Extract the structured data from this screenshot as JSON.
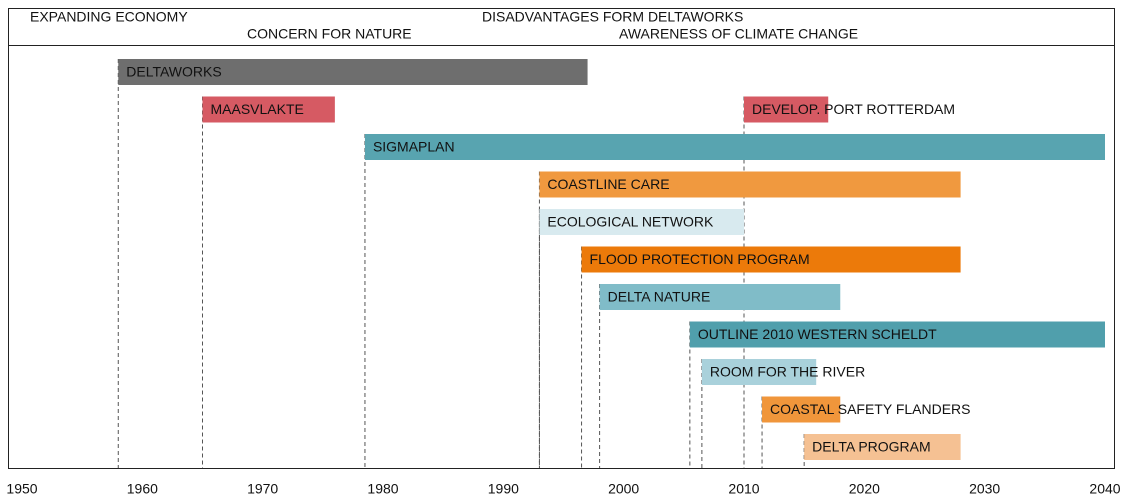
{
  "chart_data": {
    "type": "timeline",
    "eras": [
      "EXPANDING ECONOMY",
      "CONCERN FOR NATURE",
      "DISADVANTAGES FORM DELTAWORKS",
      "AWARENESS OF CLIMATE CHANGE"
    ],
    "xlim": [
      1950,
      2040
    ],
    "xticks": [
      1950,
      1960,
      1970,
      1980,
      1990,
      2000,
      2010,
      2020,
      2030,
      2040
    ],
    "rows": [
      [
        {
          "name": "DELTAWORKS",
          "start": 1958,
          "end": 1997,
          "color": "#6e6e6e"
        }
      ],
      [
        {
          "name": "MAASVLAKTE",
          "start": 1965,
          "end": 1976,
          "color": "#d65a63"
        },
        {
          "name": "DEVELOP. PORT ROTTERDAM",
          "start": 2010,
          "end": 2017,
          "color": "#d65a63"
        }
      ],
      [
        {
          "name": "SIGMAPLAN",
          "start": 1978.5,
          "end": 2040,
          "color": "#58a4b0"
        }
      ],
      [
        {
          "name": "COASTLINE CARE",
          "start": 1993,
          "end": 2028,
          "color": "#f0993f"
        }
      ],
      [
        {
          "name": "ECOLOGICAL NETWORK",
          "start": 1993,
          "end": 2010,
          "color": "#d8eaef"
        }
      ],
      [
        {
          "name": "FLOOD PROTECTION PROGRAM",
          "start": 1996.5,
          "end": 2028,
          "color": "#ec7a0a"
        }
      ],
      [
        {
          "name": "DELTA NATURE",
          "start": 1998,
          "end": 2018,
          "color": "#80bcc8"
        }
      ],
      [
        {
          "name": "OUTLINE 2010 WESTERN SCHELDT",
          "start": 2005.5,
          "end": 2040,
          "color": "#509fac"
        }
      ],
      [
        {
          "name": "ROOM FOR THE RIVER",
          "start": 2006.5,
          "end": 2016,
          "color": "#a9d1db"
        }
      ],
      [
        {
          "name": "COASTAL SAFETY FLANDERS",
          "start": 2011.5,
          "end": 2018,
          "color": "#f0963b"
        }
      ],
      [
        {
          "name": "DELTA PROGRAM",
          "start": 2015,
          "end": 2028,
          "color": "#f5c193"
        }
      ]
    ]
  }
}
